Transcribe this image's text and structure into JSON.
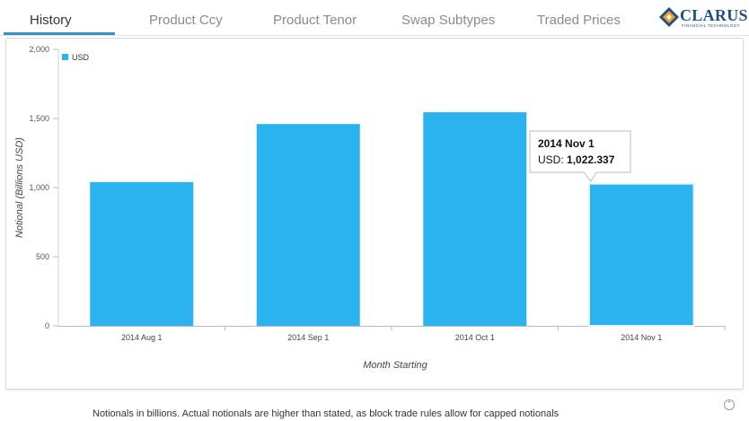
{
  "tabs": [
    {
      "label": "History",
      "active": true
    },
    {
      "label": "Product Ccy",
      "active": false
    },
    {
      "label": "Product Tenor",
      "active": false
    },
    {
      "label": "Swap Subtypes",
      "active": false
    },
    {
      "label": "Traded Prices",
      "active": false
    }
  ],
  "logo": {
    "wordmark": "CLARUS",
    "tagline": "FINANCIAL TECHNOLOGY"
  },
  "chart_data": {
    "type": "bar",
    "categories": [
      "2014 Aug 1",
      "2014 Sep 1",
      "2014 Oct 1",
      "2014 Nov 1"
    ],
    "series": [
      {
        "name": "USD",
        "values": [
          1040,
          1460,
          1545,
          1022.337
        ],
        "color": "#2bb3f0"
      }
    ],
    "ylim": [
      0,
      2000
    ],
    "yticks": [
      0,
      500,
      1000,
      1500,
      2000
    ],
    "ytick_labels": [
      "0",
      "500",
      "1,000",
      "1,500",
      "2,000"
    ],
    "title": "",
    "xlabel": "Month Starting",
    "ylabel": "Notional (Billions USD)",
    "legend": {
      "position": "top-left",
      "entries": [
        "USD"
      ]
    },
    "tooltip": {
      "title": "2014 Nov 1",
      "series_label": "USD:",
      "value_text": "1,022.337",
      "category_index": 3
    }
  },
  "footer": {
    "note": "Notionals in billions. Actual notionals are higher than stated, as block trade rules allow for capped notionals"
  },
  "colors": {
    "accent": "#3a8fc8",
    "bar": "#2bb3f0",
    "logo": "#1f4e8c"
  }
}
